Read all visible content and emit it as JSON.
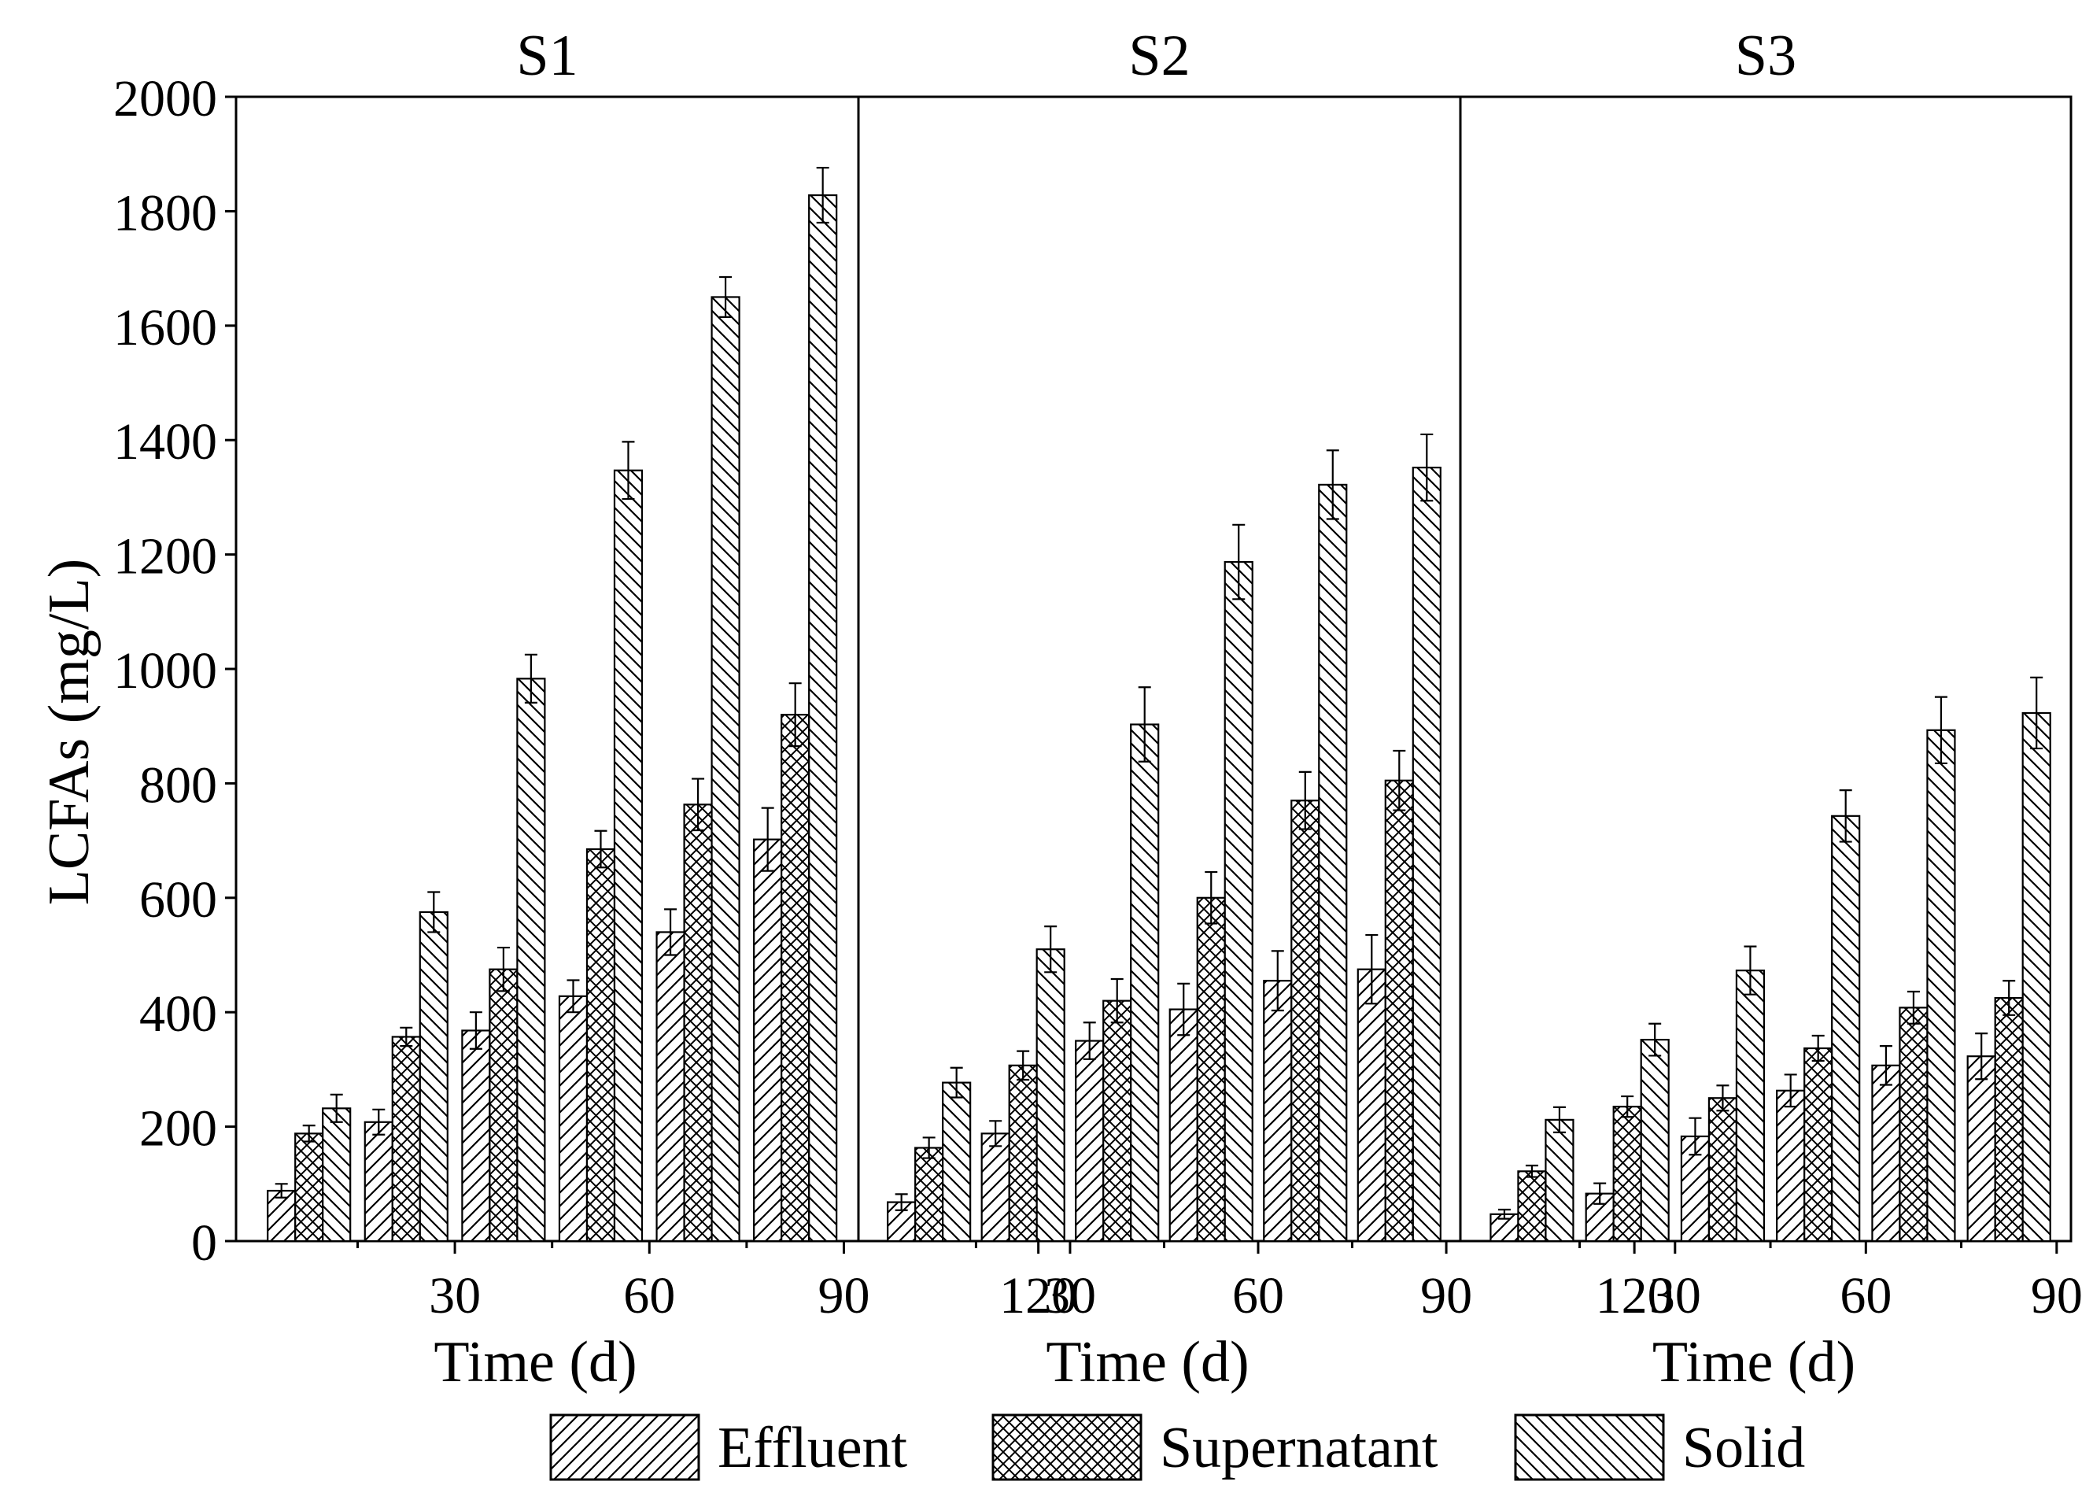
{
  "chart_data": {
    "type": "bar",
    "ylabel": "LCFAs (mg/L)",
    "ylim": [
      0,
      2000
    ],
    "yticks": [
      0,
      200,
      400,
      600,
      800,
      1000,
      1200,
      1400,
      1600,
      1800,
      2000
    ],
    "xlabel": "Time (d)",
    "x_tick_labels": [
      "30",
      "60",
      "90",
      "120"
    ],
    "legend": {
      "position": "bottom",
      "items": [
        {
          "name": "Effluent",
          "pattern": "diagonal-up"
        },
        {
          "name": "Supernatant",
          "pattern": "crosshatch"
        },
        {
          "name": "Solid",
          "pattern": "diagonal-down"
        }
      ]
    },
    "panels": [
      {
        "title": "S1",
        "timepoints": 6,
        "series": [
          {
            "name": "Effluent",
            "values": [
              88,
              208,
              368,
              428,
              540,
              702
            ],
            "errors": [
              12,
              22,
              32,
              28,
              40,
              55
            ]
          },
          {
            "name": "Supernatant",
            "values": [
              188,
              357,
              475,
              685,
              763,
              920
            ],
            "errors": [
              14,
              16,
              38,
              32,
              45,
              55
            ]
          },
          {
            "name": "Solid",
            "values": [
              232,
              575,
              983,
              1347,
              1650,
              1828
            ],
            "errors": [
              24,
              35,
              42,
              50,
              35,
              48
            ]
          }
        ]
      },
      {
        "title": "S2",
        "timepoints": 6,
        "series": [
          {
            "name": "Effluent",
            "values": [
              68,
              188,
              350,
              405,
              455,
              475
            ],
            "errors": [
              14,
              22,
              32,
              45,
              52,
              60
            ]
          },
          {
            "name": "Supernatant",
            "values": [
              163,
              307,
              420,
              600,
              770,
              805
            ],
            "errors": [
              18,
              25,
              38,
              45,
              50,
              52
            ]
          },
          {
            "name": "Solid",
            "values": [
              277,
              510,
              903,
              1187,
              1322,
              1352
            ],
            "errors": [
              26,
              40,
              65,
              65,
              60,
              58
            ]
          }
        ]
      },
      {
        "title": "S3",
        "timepoints": 6,
        "series": [
          {
            "name": "Effluent",
            "values": [
              47,
              83,
              183,
              263,
              307,
              323
            ],
            "errors": [
              8,
              18,
              32,
              28,
              34,
              40
            ]
          },
          {
            "name": "Supernatant",
            "values": [
              122,
              235,
              250,
              337,
              408,
              425
            ],
            "errors": [
              10,
              18,
              22,
              22,
              28,
              30
            ]
          },
          {
            "name": "Solid",
            "values": [
              212,
              352,
              473,
              743,
              893,
              923
            ],
            "errors": [
              22,
              28,
              42,
              45,
              58,
              62
            ]
          }
        ]
      }
    ]
  }
}
